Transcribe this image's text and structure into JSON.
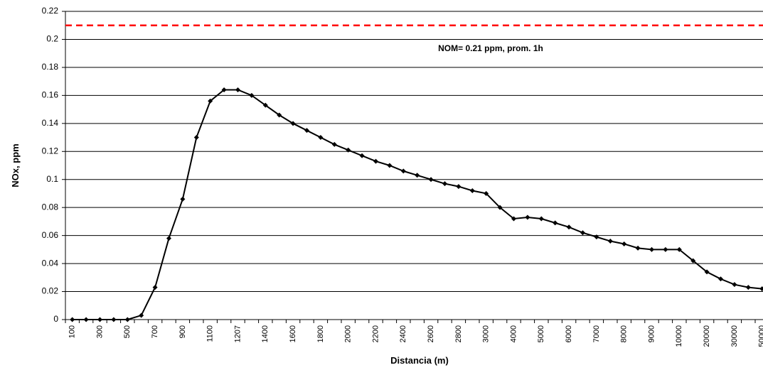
{
  "chart_data": {
    "type": "line",
    "xlabel": "Distancia (m)",
    "ylabel": "NOx, ppm",
    "categories": [
      "100",
      null,
      "300",
      null,
      "500",
      null,
      "700",
      null,
      "900",
      null,
      "1100",
      null,
      "1207",
      null,
      "1400",
      null,
      "1600",
      null,
      "1800",
      null,
      "2000",
      null,
      "2200",
      null,
      "2400",
      null,
      "2600",
      null,
      "2800",
      null,
      "3000",
      null,
      "4000",
      null,
      "5000",
      null,
      "6000",
      null,
      "7000",
      null,
      "8000",
      null,
      "9000",
      null,
      "10000",
      null,
      "20000",
      null,
      "30000",
      null,
      "50000"
    ],
    "series": [
      {
        "name": "NOx",
        "color": "#000000",
        "values": [
          0,
          0,
          0,
          0,
          0,
          0.003,
          0.023,
          0.058,
          0.086,
          0.13,
          0.156,
          0.164,
          0.164,
          0.16,
          0.153,
          0.146,
          0.14,
          0.135,
          0.13,
          0.125,
          0.121,
          0.117,
          0.113,
          0.11,
          0.106,
          0.103,
          0.1,
          0.097,
          0.095,
          0.092,
          0.09,
          0.08,
          0.072,
          0.073,
          0.072,
          0.069,
          0.066,
          0.062,
          0.059,
          0.056,
          0.054,
          0.051,
          0.05,
          0.05,
          0.05,
          0.042,
          0.034,
          0.029,
          0.025,
          0.023,
          0.022
        ]
      }
    ],
    "reference_line": {
      "value": 0.21,
      "label": "NOM= 0.21 ppm, prom. 1h",
      "color": "#ff0000"
    },
    "ylim": [
      0,
      0.22
    ],
    "yticks": [
      0,
      0.02,
      0.04,
      0.06,
      0.08,
      0.1,
      0.12,
      0.14,
      0.16,
      0.18,
      0.2,
      0.22
    ],
    "grid": true
  }
}
